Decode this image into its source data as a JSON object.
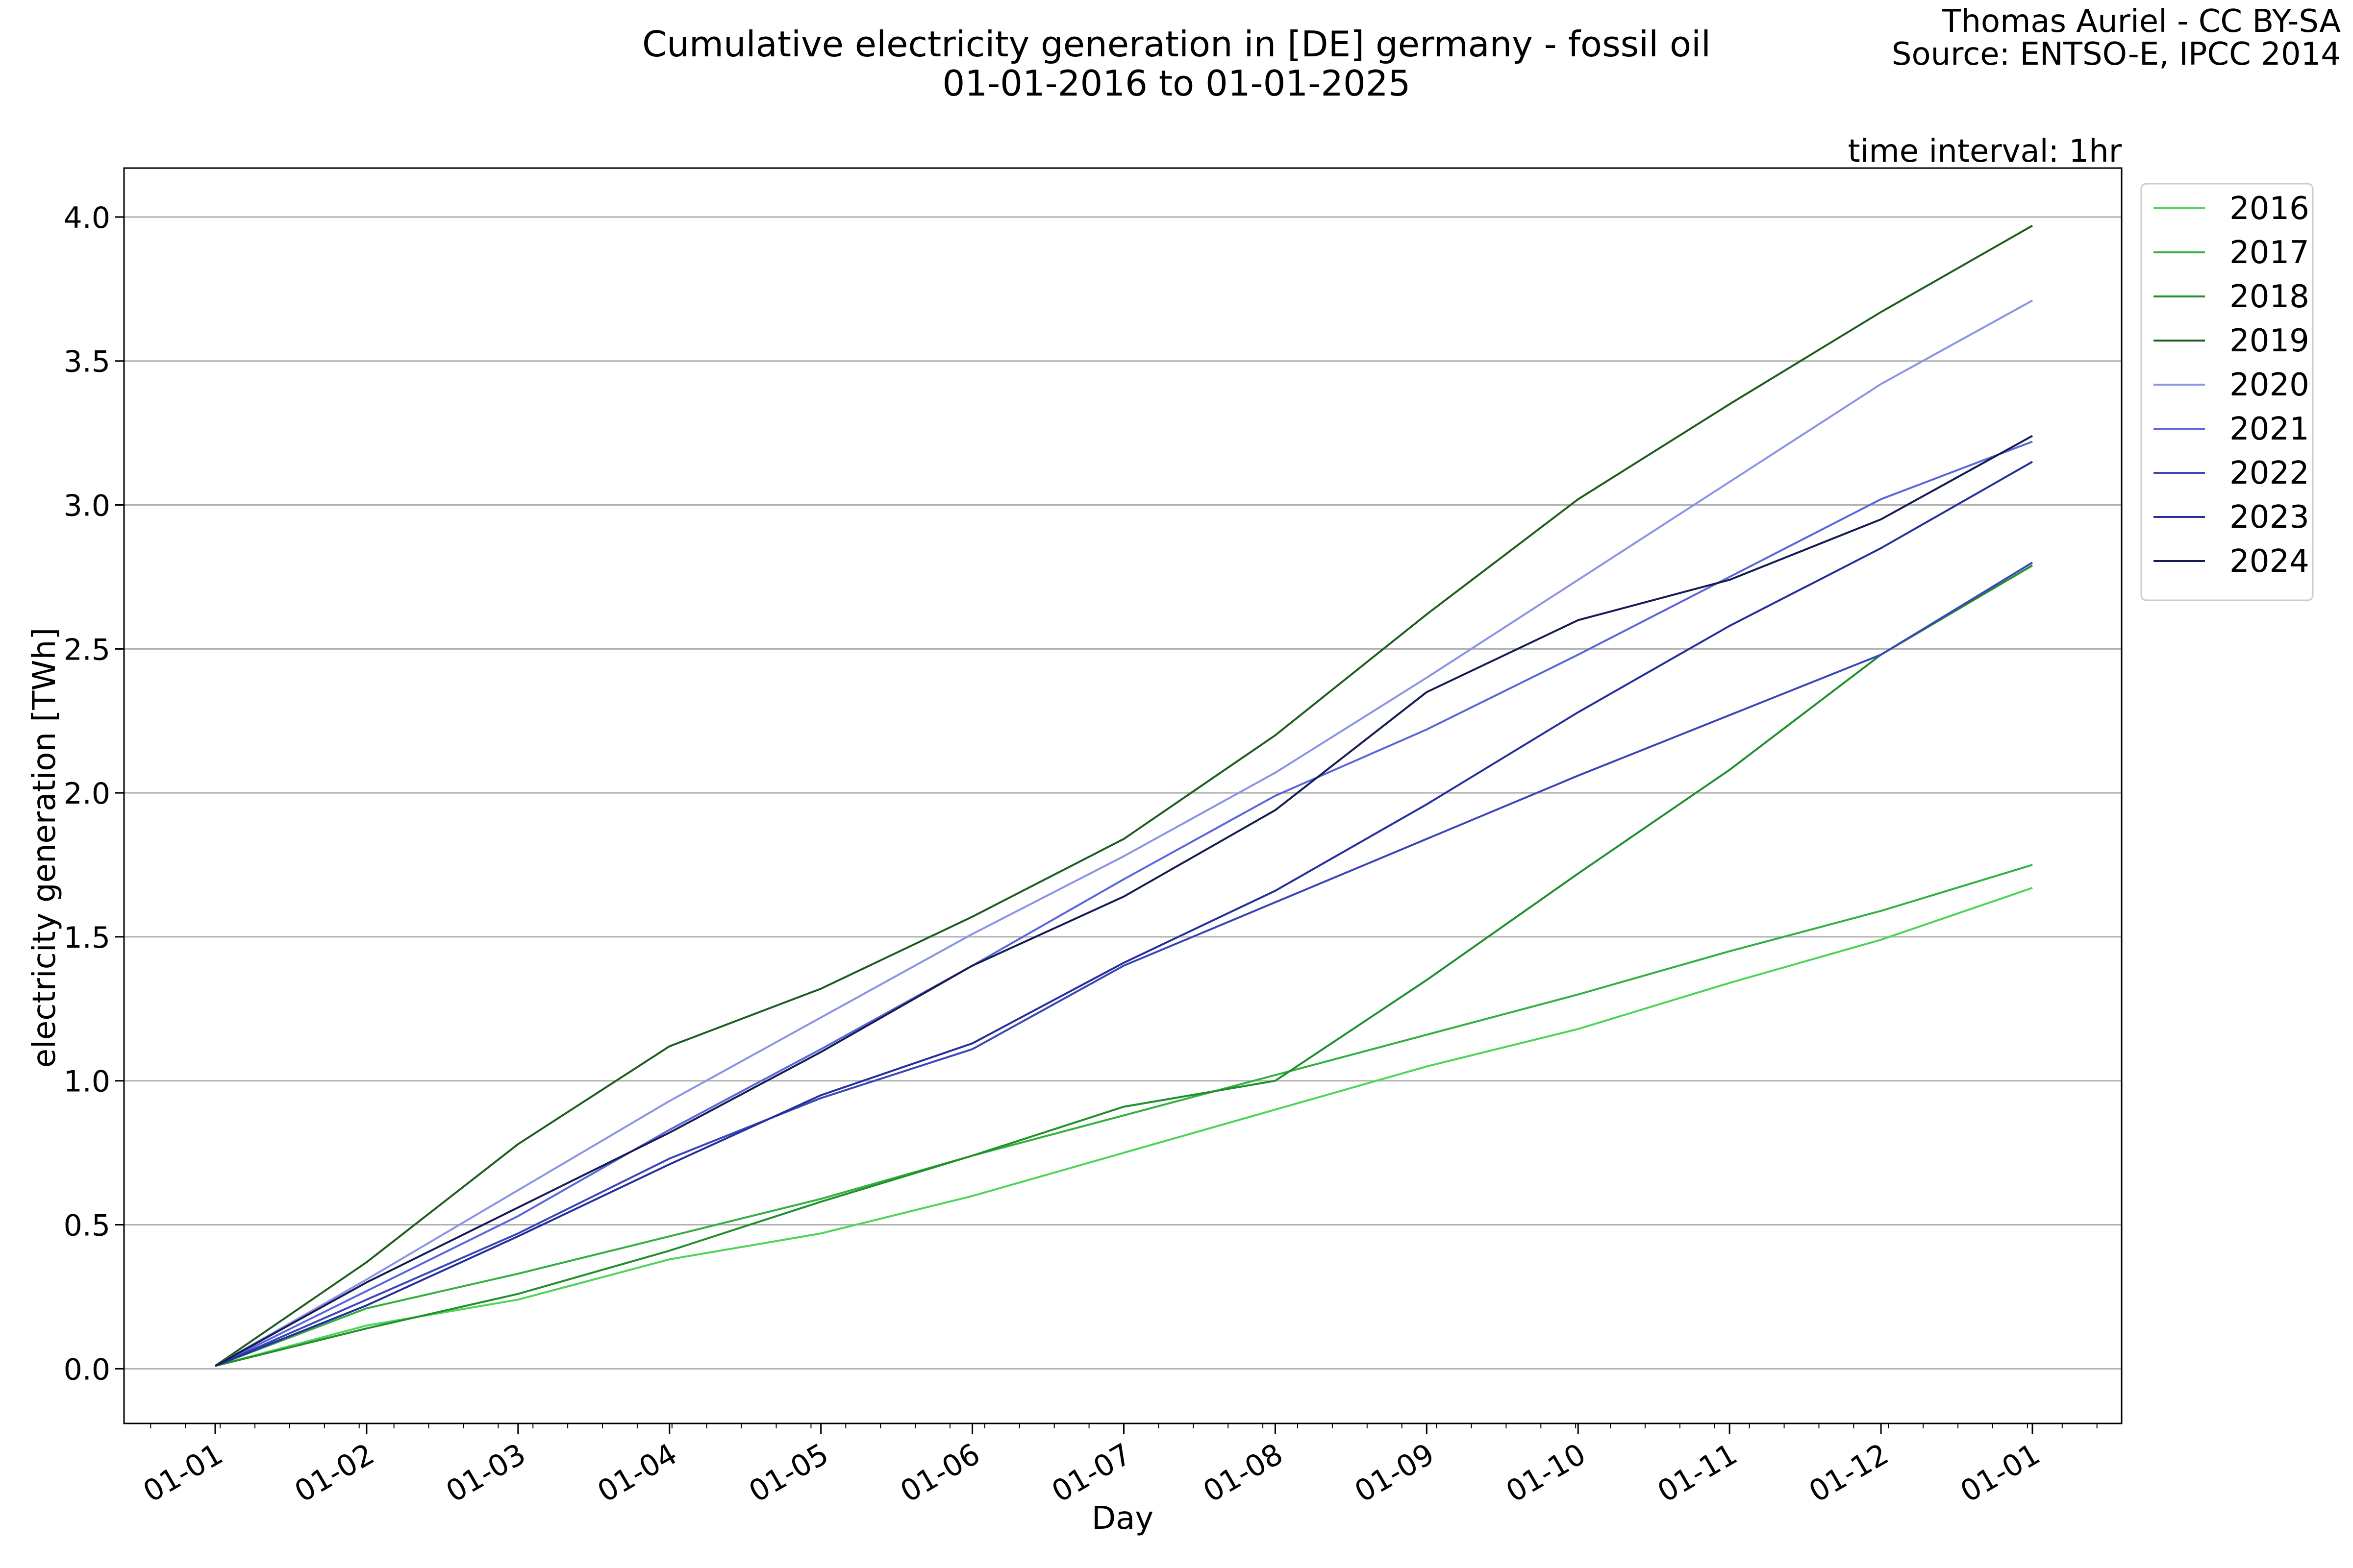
{
  "chart_data": {
    "type": "line",
    "title": "Cumulative electricity generation in [DE] germany - fossil oil",
    "subtitle": "01-01-2016 to 01-01-2025",
    "credit": [
      "Thomas Auriel - CC BY-SA",
      "Source: ENTSO-E, IPCC 2014"
    ],
    "annotation": "time interval: 1hr",
    "xlabel": "Day",
    "ylabel": "electricity generation [TWh]",
    "x_tick_labels": [
      "01-01",
      "01-02",
      "01-03",
      "01-04",
      "01-05",
      "01-06",
      "01-07",
      "01-08",
      "01-09",
      "01-10",
      "01-11",
      "01-12",
      "01-01"
    ],
    "x": [
      "01-01",
      "02-01",
      "03-01",
      "04-01",
      "05-01",
      "06-01",
      "07-01",
      "08-01",
      "09-01",
      "10-01",
      "11-01",
      "12-01",
      "12-31"
    ],
    "ylim": [
      -0.19,
      4.17
    ],
    "yticks": [
      0.0,
      0.5,
      1.0,
      1.5,
      2.0,
      2.5,
      3.0,
      3.5,
      4.0
    ],
    "ytick_labels": [
      "0.0",
      "0.5",
      "1.0",
      "1.5",
      "2.0",
      "2.5",
      "3.0",
      "3.5",
      "4.0"
    ],
    "grid": "horizontal",
    "legend_position": "outside-right-top",
    "series": [
      {
        "name": "2016",
        "color": "#4ed45a",
        "values": [
          0.01,
          0.15,
          0.24,
          0.38,
          0.47,
          0.6,
          0.75,
          0.9,
          1.05,
          1.18,
          1.34,
          1.49,
          1.67
        ]
      },
      {
        "name": "2017",
        "color": "#34b040",
        "values": [
          0.01,
          0.21,
          0.33,
          0.46,
          0.59,
          0.74,
          0.88,
          1.02,
          1.16,
          1.3,
          1.45,
          1.59,
          1.75
        ]
      },
      {
        "name": "2018",
        "color": "#20902c",
        "values": [
          0.01,
          0.14,
          0.26,
          0.41,
          0.58,
          0.74,
          0.91,
          1.0,
          1.35,
          1.72,
          2.08,
          2.48,
          2.79
        ]
      },
      {
        "name": "2019",
        "color": "#1d5e20",
        "values": [
          0.01,
          0.37,
          0.78,
          1.12,
          1.32,
          1.57,
          1.84,
          2.2,
          2.62,
          3.02,
          3.35,
          3.67,
          3.97
        ]
      },
      {
        "name": "2020",
        "color": "#8a93e6",
        "values": [
          0.01,
          0.31,
          0.62,
          0.93,
          1.22,
          1.51,
          1.78,
          2.07,
          2.4,
          2.74,
          3.08,
          3.42,
          3.71
        ]
      },
      {
        "name": "2021",
        "color": "#5a67da",
        "values": [
          0.01,
          0.27,
          0.53,
          0.83,
          1.11,
          1.4,
          1.7,
          1.99,
          2.22,
          2.48,
          2.75,
          3.02,
          3.22
        ]
      },
      {
        "name": "2022",
        "color": "#3b46b8",
        "values": [
          0.01,
          0.24,
          0.47,
          0.73,
          0.94,
          1.11,
          1.4,
          1.62,
          1.84,
          2.06,
          2.27,
          2.48,
          2.8
        ]
      },
      {
        "name": "2023",
        "color": "#262f9a",
        "values": [
          0.01,
          0.22,
          0.46,
          0.71,
          0.95,
          1.13,
          1.41,
          1.66,
          1.96,
          2.28,
          2.58,
          2.85,
          3.15
        ]
      },
      {
        "name": "2024",
        "color": "#161c52",
        "values": [
          0.01,
          0.3,
          0.56,
          0.82,
          1.1,
          1.4,
          1.64,
          1.94,
          2.35,
          2.6,
          2.74,
          2.95,
          3.24
        ]
      }
    ]
  }
}
